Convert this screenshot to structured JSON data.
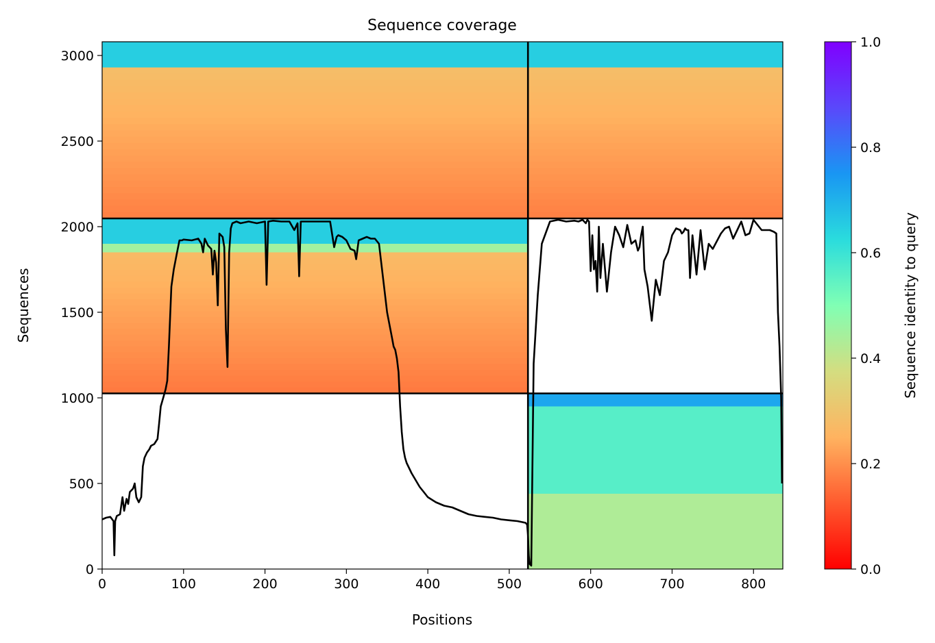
{
  "chart_data": {
    "type": "heatmap",
    "title": "Sequence coverage",
    "xlabel": "Positions",
    "ylabel": "Sequences",
    "xlim": [
      0,
      836
    ],
    "ylim": [
      0,
      3080
    ],
    "xticks": [
      0,
      100,
      200,
      300,
      400,
      500,
      600,
      700,
      800
    ],
    "yticks": [
      0,
      500,
      1000,
      1500,
      2000,
      2500,
      3000
    ],
    "colorbar": {
      "label": "Sequence identity to query",
      "range": [
        0,
        1
      ],
      "ticks": [
        "0.0",
        "0.2",
        "0.4",
        "0.6",
        "0.8",
        "1.0"
      ],
      "colormap": "rainbow_r"
    },
    "grid": false,
    "chain_boundaries": {
      "x": [
        523
      ],
      "y": [
        1026,
        2048
      ]
    },
    "blocks": [
      {
        "name": "chain1-chain2",
        "x_range": [
          0,
          523
        ],
        "y_range": [
          1026,
          2048
        ],
        "bands": [
          {
            "y": [
              1900,
              2048
            ],
            "identity": 0.65
          },
          {
            "y": [
              1850,
              1900
            ],
            "identity": 0.45
          },
          {
            "y": [
              1026,
              1850
            ],
            "identity_top": 0.27,
            "identity_bottom": 0.17
          }
        ]
      },
      {
        "name": "chain1-chain3",
        "x_range": [
          0,
          523
        ],
        "y_range": [
          2048,
          3080
        ],
        "bands": [
          {
            "y": [
              2930,
              3080
            ],
            "identity": 0.65
          },
          {
            "y": [
              2048,
              2930
            ],
            "identity_top": 0.28,
            "identity_bottom": 0.18
          }
        ]
      },
      {
        "name": "chain2-chain3",
        "x_range": [
          523,
          836
        ],
        "y_range": [
          2048,
          3080
        ],
        "bands": [
          {
            "y": [
              2930,
              3080
            ],
            "identity": 0.65
          },
          {
            "y": [
              2048,
              2930
            ],
            "identity_top": 0.28,
            "identity_bottom": 0.18
          }
        ]
      },
      {
        "name": "chain2-only",
        "x_range": [
          523,
          836
        ],
        "y_range": [
          0,
          1026
        ],
        "bands": [
          {
            "y": [
              950,
              1026
            ],
            "identity": 0.72
          },
          {
            "y": [
              440,
              950
            ],
            "identity": 0.56
          },
          {
            "y": [
              0,
              440
            ],
            "identity": 0.43
          }
        ]
      }
    ],
    "coverage_line": {
      "name": "coverage",
      "x": [
        0,
        5,
        10,
        14,
        15,
        16,
        18,
        22,
        25,
        27,
        30,
        32,
        34,
        38,
        40,
        42,
        45,
        48,
        50,
        52,
        55,
        58,
        60,
        64,
        68,
        70,
        72,
        75,
        78,
        80,
        82,
        85,
        88,
        92,
        95,
        98,
        100,
        110,
        118,
        122,
        124,
        126,
        130,
        134,
        136,
        138,
        140,
        142,
        144,
        148,
        150,
        152,
        154,
        156,
        158,
        160,
        165,
        170,
        180,
        190,
        200,
        202,
        204,
        210,
        220,
        230,
        236,
        240,
        242,
        244,
        250,
        260,
        270,
        280,
        285,
        288,
        290,
        295,
        300,
        305,
        310,
        312,
        315,
        320,
        325,
        330,
        335,
        340,
        345,
        350,
        352,
        354,
        356,
        358,
        360,
        362,
        364,
        366,
        368,
        370,
        372,
        374,
        376,
        380,
        385,
        390,
        395,
        400,
        410,
        420,
        430,
        440,
        450,
        460,
        470,
        480,
        490,
        500,
        510,
        520,
        521,
        522,
        523,
        524,
        525,
        527,
        530,
        535,
        540,
        550,
        560,
        570,
        580,
        585,
        590,
        592,
        594,
        596,
        598,
        600,
        602,
        604,
        606,
        608,
        610,
        612,
        615,
        620,
        625,
        630,
        635,
        640,
        645,
        650,
        655,
        658,
        660,
        662,
        664,
        666,
        670,
        675,
        680,
        685,
        690,
        695,
        700,
        705,
        710,
        712,
        714,
        716,
        718,
        720,
        722,
        725,
        730,
        735,
        740,
        745,
        750,
        760,
        765,
        770,
        775,
        780,
        785,
        790,
        795,
        800,
        810,
        820,
        825,
        828,
        830,
        832,
        834,
        835
      ],
      "y": [
        290,
        300,
        305,
        280,
        80,
        280,
        310,
        320,
        420,
        340,
        410,
        380,
        450,
        470,
        500,
        420,
        390,
        420,
        600,
        650,
        680,
        700,
        720,
        730,
        760,
        850,
        950,
        1000,
        1050,
        1100,
        1300,
        1650,
        1750,
        1850,
        1920,
        1920,
        1925,
        1920,
        1930,
        1900,
        1850,
        1930,
        1890,
        1870,
        1720,
        1860,
        1790,
        1540,
        1960,
        1940,
        1880,
        1400,
        1180,
        1850,
        1990,
        2020,
        2030,
        2020,
        2030,
        2020,
        2030,
        1660,
        2030,
        2035,
        2030,
        2030,
        1980,
        2020,
        1710,
        2030,
        2030,
        2030,
        2030,
        2030,
        1880,
        1940,
        1950,
        1940,
        1920,
        1870,
        1860,
        1810,
        1920,
        1930,
        1940,
        1930,
        1930,
        1900,
        1700,
        1500,
        1450,
        1400,
        1350,
        1300,
        1280,
        1230,
        1150,
        950,
        800,
        700,
        650,
        620,
        600,
        560,
        520,
        480,
        450,
        420,
        390,
        370,
        360,
        340,
        320,
        310,
        305,
        300,
        290,
        285,
        280,
        270,
        265,
        260,
        200,
        80,
        30,
        20,
        1200,
        1600,
        1900,
        2030,
        2040,
        2030,
        2035,
        2030,
        2040,
        2030,
        2020,
        2040,
        2030,
        1740,
        1950,
        1750,
        1800,
        1620,
        2000,
        1700,
        1900,
        1620,
        1850,
        2000,
        1950,
        1880,
        2010,
        1900,
        1920,
        1860,
        1880,
        1950,
        2000,
        1750,
        1650,
        1450,
        1690,
        1600,
        1800,
        1850,
        1950,
        1990,
        1980,
        1960,
        1970,
        1990,
        1980,
        1980,
        1700,
        1950,
        1720,
        1980,
        1750,
        1900,
        1870,
        1960,
        1990,
        2000,
        1930,
        1980,
        2030,
        1950,
        1960,
        2040,
        1980,
        1980,
        1970,
        1960,
        1500,
        1300,
        1000,
        500
      ]
    }
  }
}
